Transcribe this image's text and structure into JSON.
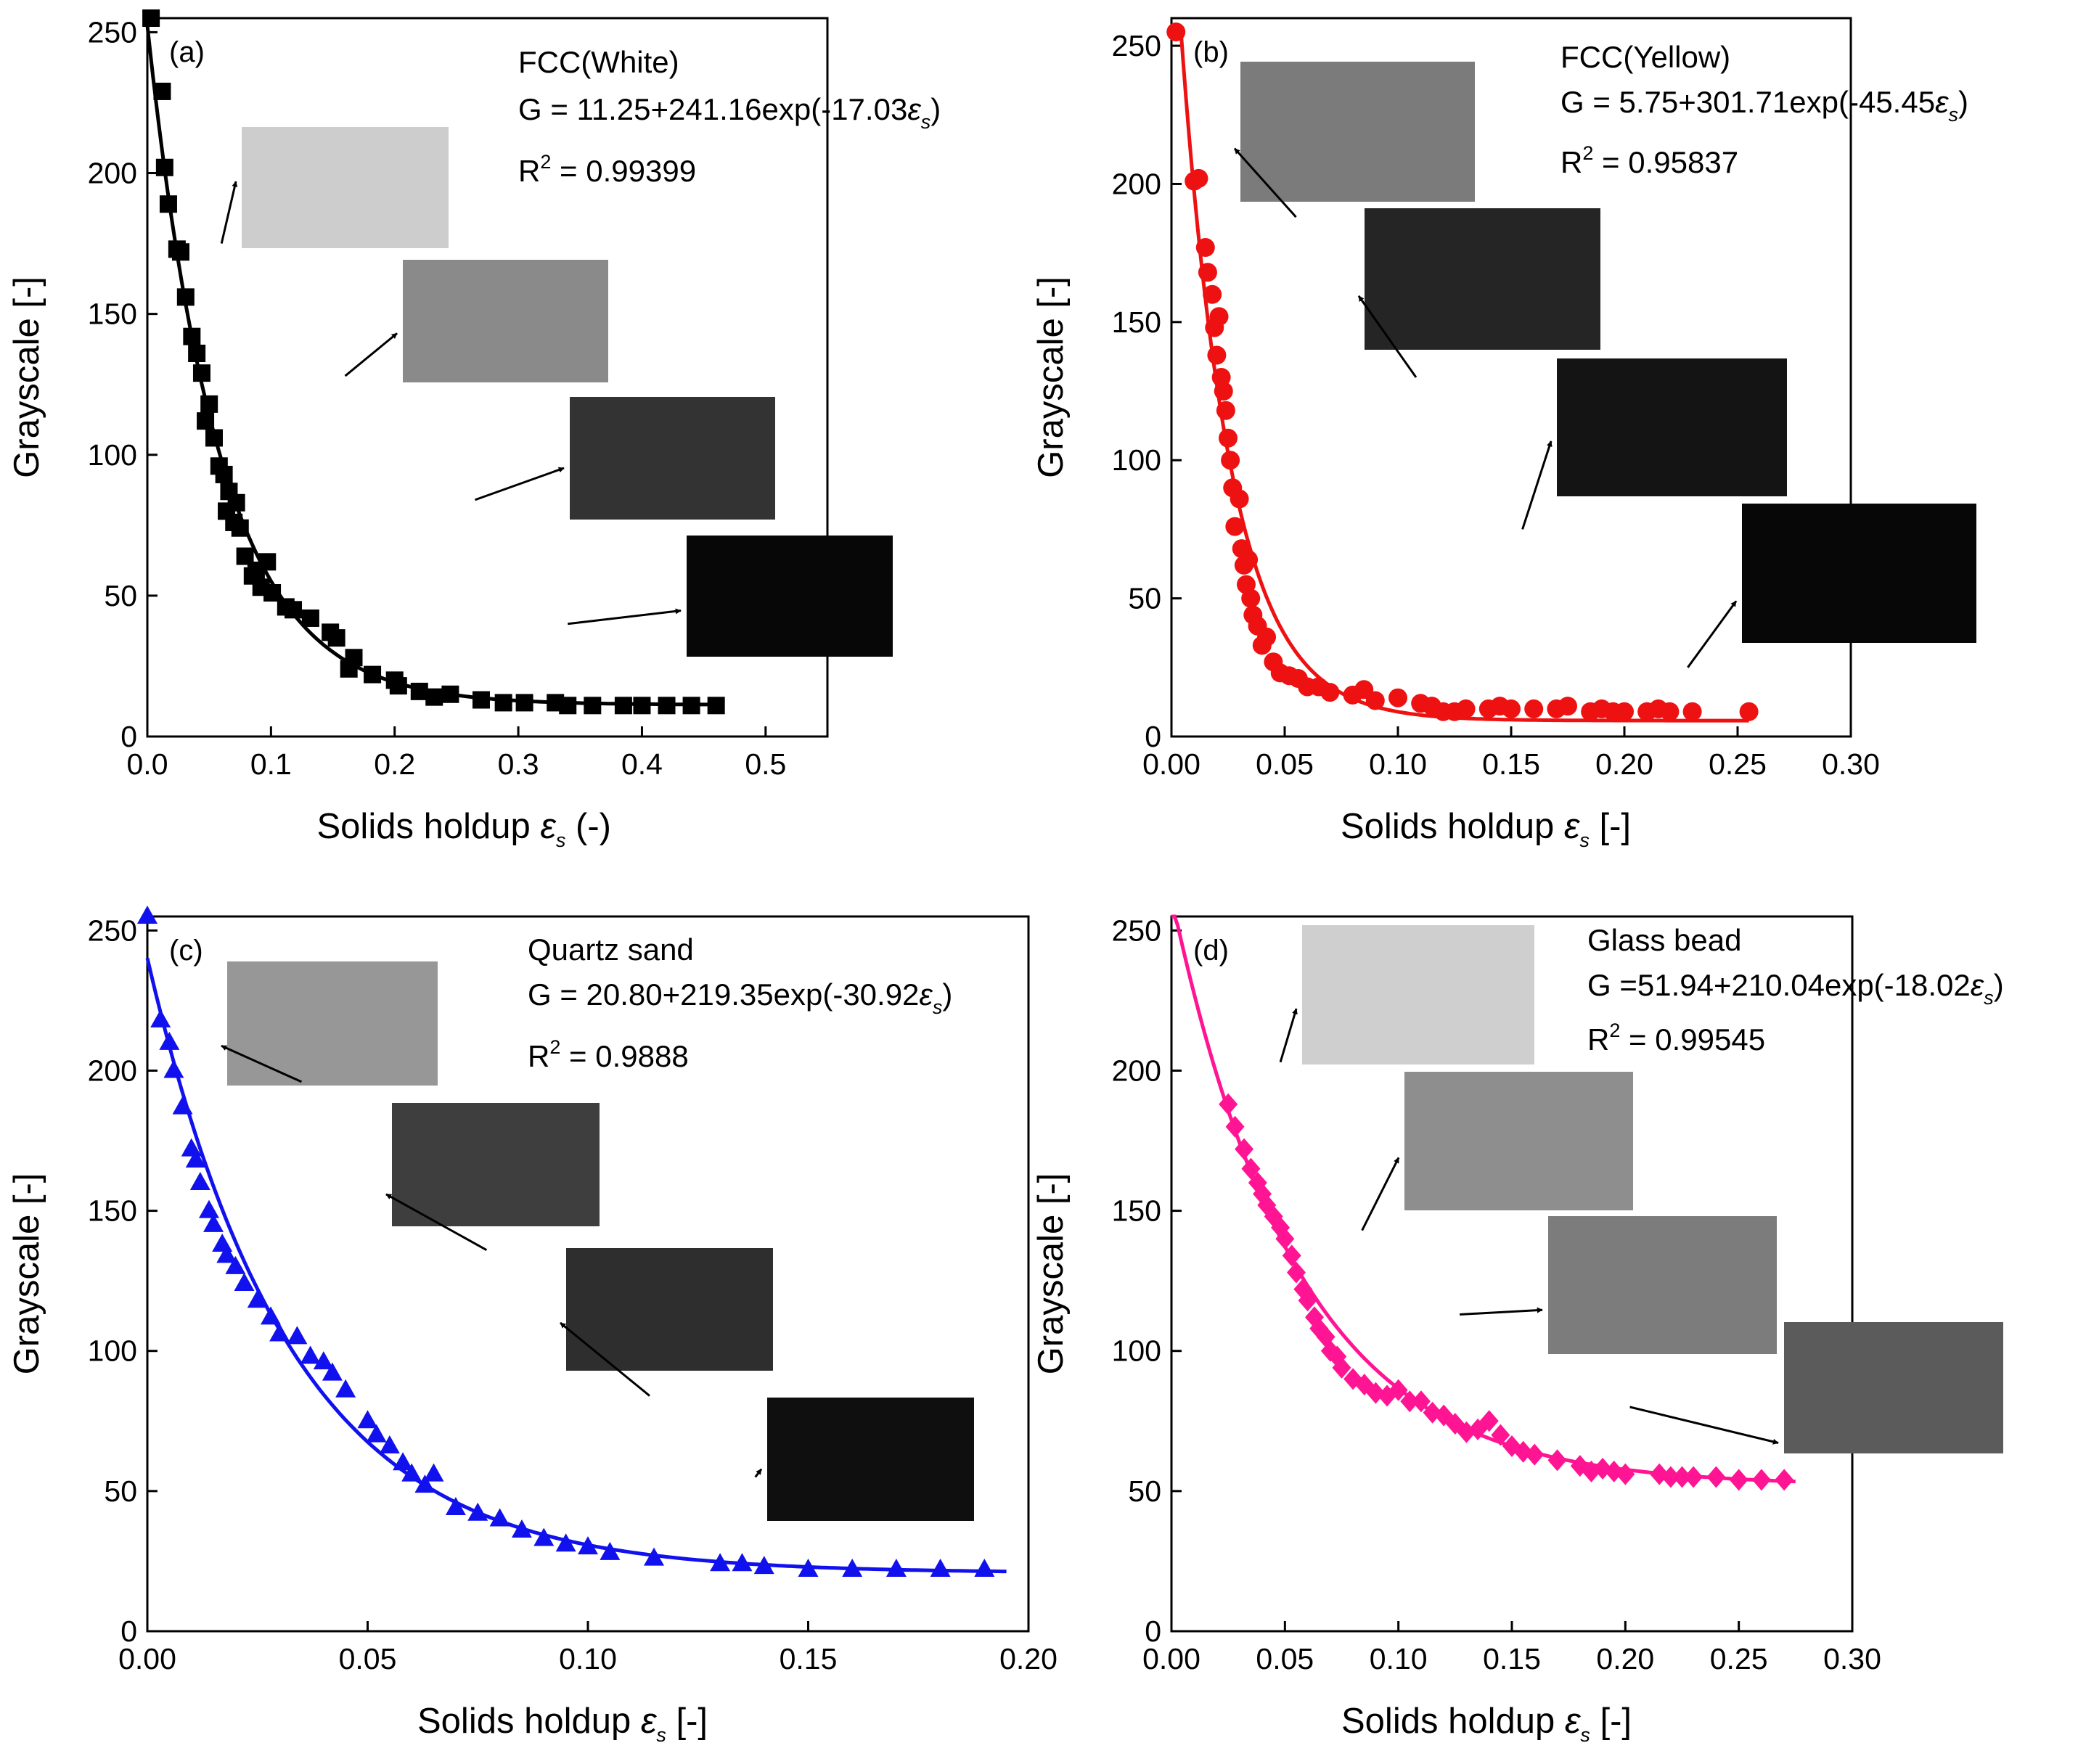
{
  "figure": {
    "fit_model": "G = a + b*exp(c*eps)",
    "colors": {
      "a": "#000000",
      "b": "#ee1111",
      "c": "#1111ee",
      "d": "#ff1493"
    },
    "arrow_color": "#000000"
  },
  "chart_data": [
    {
      "id": "a",
      "type": "scatter",
      "marker": "square",
      "color": "#000000",
      "panel_label": "(a)",
      "title": "FCC(White)",
      "equation": {
        "prefix": "G = 11.25+241.16exp(-17.03",
        "symbol": "ε",
        "subscript": "s",
        "suffix": ")"
      },
      "r2": {
        "prefix": "R",
        "sup": "2",
        "text": " = 0.99399"
      },
      "xlabel": {
        "prefix": "Solids holdup ",
        "symbol": "ε",
        "subscript": "s",
        "suffix": " (-)"
      },
      "ylabel": "Grayscale [-]",
      "xlim": [
        0,
        0.55
      ],
      "ylim": [
        0,
        255
      ],
      "xticks": [
        0.0,
        0.1,
        0.2,
        0.3,
        0.4,
        0.5
      ],
      "xtick_labels": [
        "0.0",
        "0.1",
        "0.2",
        "0.3",
        "0.4",
        "0.5"
      ],
      "yticks": [
        0,
        50,
        100,
        150,
        200,
        250
      ],
      "ytick_labels": [
        "0",
        "50",
        "100",
        "150",
        "200",
        "250"
      ],
      "fit": {
        "a": 11.25,
        "b": 241.16,
        "c": -17.03,
        "x_range": [
          0,
          0.46
        ]
      },
      "points": {
        "x": [
          0.003,
          0.012,
          0.014,
          0.017,
          0.024,
          0.027,
          0.031,
          0.036,
          0.04,
          0.044,
          0.047,
          0.05,
          0.054,
          0.058,
          0.062,
          0.064,
          0.066,
          0.07,
          0.072,
          0.075,
          0.079,
          0.085,
          0.088,
          0.092,
          0.097,
          0.101,
          0.112,
          0.118,
          0.132,
          0.148,
          0.153,
          0.163,
          0.167,
          0.182,
          0.2,
          0.203,
          0.22,
          0.232,
          0.245,
          0.27,
          0.288,
          0.305,
          0.33,
          0.34,
          0.36,
          0.385,
          0.4,
          0.42,
          0.44,
          0.46
        ],
        "y": [
          255,
          229,
          202,
          189,
          173,
          172,
          156,
          142,
          136,
          129,
          112,
          118,
          106,
          96,
          93,
          80,
          87,
          76,
          83,
          74,
          64,
          57,
          59,
          53,
          62,
          51,
          46,
          45,
          42,
          37,
          35,
          24,
          28,
          22,
          20,
          18,
          16,
          14,
          15,
          13,
          12,
          12,
          12,
          11,
          11,
          11,
          11,
          11,
          11,
          11
        ]
      },
      "insets": [
        {
          "shade": "#cdcdcd",
          "tip": [
            0.06,
            175
          ]
        },
        {
          "shade": "#8a8a8a",
          "tip": [
            0.16,
            128
          ]
        },
        {
          "shade": "#333333",
          "tip": [
            0.265,
            84
          ]
        },
        {
          "shade": "#070707",
          "tip": [
            0.34,
            40
          ]
        }
      ]
    },
    {
      "id": "b",
      "type": "scatter",
      "marker": "circle",
      "color": "#ee1111",
      "panel_label": "(b)",
      "title": "FCC(Yellow)",
      "equation": {
        "prefix": "G = 5.75+301.71exp(-45.45",
        "symbol": "ε",
        "subscript": "s",
        "suffix": ")"
      },
      "r2": {
        "prefix": "R",
        "sup": "2",
        "text": " = 0.95837"
      },
      "xlabel": {
        "prefix": "Solids holdup ",
        "symbol": "ε",
        "subscript": "s",
        "suffix": " [-]"
      },
      "ylabel": "Grayscale [-]",
      "xlim": [
        0,
        0.3
      ],
      "ylim": [
        0,
        260
      ],
      "xticks": [
        0.0,
        0.05,
        0.1,
        0.15,
        0.2,
        0.25,
        0.3
      ],
      "xtick_labels": [
        "0.00",
        "0.05",
        "0.10",
        "0.15",
        "0.20",
        "0.25",
        "0.30"
      ],
      "yticks": [
        0,
        50,
        100,
        150,
        200,
        250
      ],
      "ytick_labels": [
        "0",
        "50",
        "100",
        "150",
        "200",
        "250"
      ],
      "fit": {
        "a": 5.75,
        "b": 301.71,
        "c": -45.45,
        "x_range": [
          0.004,
          0.255
        ]
      },
      "points": {
        "x": [
          0.002,
          0.01,
          0.012,
          0.015,
          0.016,
          0.018,
          0.019,
          0.02,
          0.021,
          0.022,
          0.023,
          0.024,
          0.025,
          0.026,
          0.027,
          0.028,
          0.03,
          0.031,
          0.032,
          0.033,
          0.034,
          0.035,
          0.036,
          0.038,
          0.04,
          0.042,
          0.045,
          0.048,
          0.052,
          0.056,
          0.06,
          0.065,
          0.07,
          0.08,
          0.085,
          0.09,
          0.1,
          0.11,
          0.115,
          0.12,
          0.125,
          0.13,
          0.14,
          0.145,
          0.15,
          0.16,
          0.17,
          0.175,
          0.185,
          0.19,
          0.195,
          0.2,
          0.21,
          0.215,
          0.22,
          0.23,
          0.255
        ],
        "y": [
          255,
          201,
          202,
          177,
          168,
          160,
          148,
          138,
          152,
          130,
          125,
          118,
          108,
          100,
          90,
          76,
          86,
          68,
          62,
          55,
          64,
          50,
          44,
          40,
          33,
          36,
          27,
          23,
          22,
          21,
          18,
          18,
          16,
          15,
          17,
          13,
          14,
          12,
          11,
          9,
          9,
          10,
          10,
          11,
          10,
          10,
          10,
          11,
          9,
          10,
          9,
          9,
          9,
          10,
          9,
          9,
          9
        ]
      },
      "insets": [
        {
          "shade": "#7b7b7b",
          "tip": [
            0.055,
            188
          ]
        },
        {
          "shade": "#252525",
          "tip": [
            0.108,
            130
          ]
        },
        {
          "shade": "#141414",
          "tip": [
            0.155,
            75
          ]
        },
        {
          "shade": "#070707",
          "tip": [
            0.228,
            25
          ]
        }
      ]
    },
    {
      "id": "c",
      "type": "scatter",
      "marker": "triangle",
      "color": "#1111ee",
      "panel_label": "(c)",
      "title": "Quartz sand",
      "equation": {
        "prefix": "G = 20.80+219.35exp(-30.92",
        "symbol": "ε",
        "subscript": "s",
        "suffix": ")"
      },
      "r2": {
        "prefix": "R",
        "sup": "2",
        "text": " = 0.9888"
      },
      "xlabel": {
        "prefix": "Solids holdup ",
        "symbol": "ε",
        "subscript": "s",
        "suffix": " [-]"
      },
      "ylabel": "Grayscale [-]",
      "xlim": [
        0,
        0.2
      ],
      "ylim": [
        0,
        255
      ],
      "xticks": [
        0.0,
        0.05,
        0.1,
        0.15,
        0.2
      ],
      "xtick_labels": [
        "0.00",
        "0.05",
        "0.10",
        "0.15",
        "0.20"
      ],
      "yticks": [
        0,
        50,
        100,
        150,
        200,
        250
      ],
      "ytick_labels": [
        "0",
        "50",
        "100",
        "150",
        "200",
        "250"
      ],
      "fit": {
        "a": 20.8,
        "b": 219.35,
        "c": -30.92,
        "x_range": [
          0,
          0.195
        ]
      },
      "points": {
        "x": [
          0.0,
          0.003,
          0.005,
          0.006,
          0.008,
          0.01,
          0.011,
          0.012,
          0.014,
          0.015,
          0.017,
          0.018,
          0.02,
          0.022,
          0.025,
          0.028,
          0.03,
          0.034,
          0.037,
          0.04,
          0.042,
          0.045,
          0.05,
          0.052,
          0.055,
          0.058,
          0.06,
          0.063,
          0.065,
          0.07,
          0.075,
          0.08,
          0.085,
          0.09,
          0.095,
          0.1,
          0.105,
          0.115,
          0.13,
          0.135,
          0.14,
          0.15,
          0.16,
          0.17,
          0.18,
          0.19
        ],
        "y": [
          255,
          218,
          210,
          200,
          187,
          172,
          168,
          160,
          150,
          145,
          138,
          134,
          130,
          124,
          118,
          112,
          106,
          105,
          98,
          96,
          92,
          86,
          75,
          70,
          66,
          60,
          56,
          52,
          56,
          44,
          42,
          40,
          36,
          33,
          31,
          30,
          28,
          26,
          24,
          24,
          23,
          22,
          22,
          22,
          22,
          22
        ]
      },
      "insets": [
        {
          "shade": "#979797",
          "tip": [
            0.035,
            196
          ]
        },
        {
          "shade": "#3e3e3e",
          "tip": [
            0.077,
            136
          ]
        },
        {
          "shade": "#2e2e2e",
          "tip": [
            0.114,
            84
          ]
        },
        {
          "shade": "#0f0f0f",
          "tip": [
            0.138,
            55
          ]
        }
      ]
    },
    {
      "id": "d",
      "type": "scatter",
      "marker": "diamond",
      "color": "#ff1493",
      "panel_label": "(d)",
      "title": "Glass bead",
      "equation": {
        "prefix": "G =51.94+210.04exp(-18.02",
        "symbol": "ε",
        "subscript": "s",
        "suffix": ")"
      },
      "r2": {
        "prefix": "R",
        "sup": "2",
        "text": " = 0.99545"
      },
      "xlabel": {
        "prefix": "Solids holdup ",
        "symbol": "ε",
        "subscript": "s",
        "suffix": " [-]"
      },
      "ylabel": "Grayscale [-]",
      "xlim": [
        0,
        0.3
      ],
      "ylim": [
        0,
        255
      ],
      "xticks": [
        0.0,
        0.05,
        0.1,
        0.15,
        0.2,
        0.25,
        0.3
      ],
      "xtick_labels": [
        "0.00",
        "0.05",
        "0.10",
        "0.15",
        "0.20",
        "0.25",
        "0.30"
      ],
      "yticks": [
        0,
        50,
        100,
        150,
        200,
        250
      ],
      "ytick_labels": [
        "0",
        "50",
        "100",
        "150",
        "200",
        "250"
      ],
      "fit": {
        "a": 51.94,
        "b": 210.04,
        "c": -18.02,
        "x_range": [
          0,
          0.275
        ]
      },
      "points": {
        "x": [
          0.025,
          0.028,
          0.032,
          0.035,
          0.038,
          0.04,
          0.042,
          0.045,
          0.048,
          0.05,
          0.053,
          0.055,
          0.058,
          0.06,
          0.063,
          0.065,
          0.068,
          0.07,
          0.073,
          0.075,
          0.08,
          0.085,
          0.09,
          0.095,
          0.1,
          0.105,
          0.11,
          0.115,
          0.12,
          0.125,
          0.13,
          0.135,
          0.14,
          0.145,
          0.15,
          0.155,
          0.16,
          0.17,
          0.18,
          0.185,
          0.19,
          0.195,
          0.2,
          0.215,
          0.22,
          0.225,
          0.23,
          0.24,
          0.25,
          0.26,
          0.27
        ],
        "y": [
          188,
          180,
          172,
          165,
          160,
          156,
          152,
          148,
          144,
          140,
          134,
          128,
          122,
          118,
          112,
          108,
          105,
          100,
          98,
          94,
          90,
          88,
          85,
          84,
          86,
          82,
          82,
          78,
          77,
          74,
          71,
          72,
          75,
          70,
          66,
          64,
          63,
          61,
          59,
          57,
          58,
          57,
          56,
          56,
          55,
          55,
          55,
          55,
          54,
          54,
          54
        ]
      },
      "insets": [
        {
          "shade": "#cfcfcf",
          "tip": [
            0.048,
            203
          ]
        },
        {
          "shade": "#8e8e8e",
          "tip": [
            0.084,
            143
          ]
        },
        {
          "shade": "#7c7c7c",
          "tip": [
            0.127,
            113
          ]
        },
        {
          "shade": "#5b5b5b",
          "tip": [
            0.202,
            80
          ]
        }
      ]
    }
  ]
}
